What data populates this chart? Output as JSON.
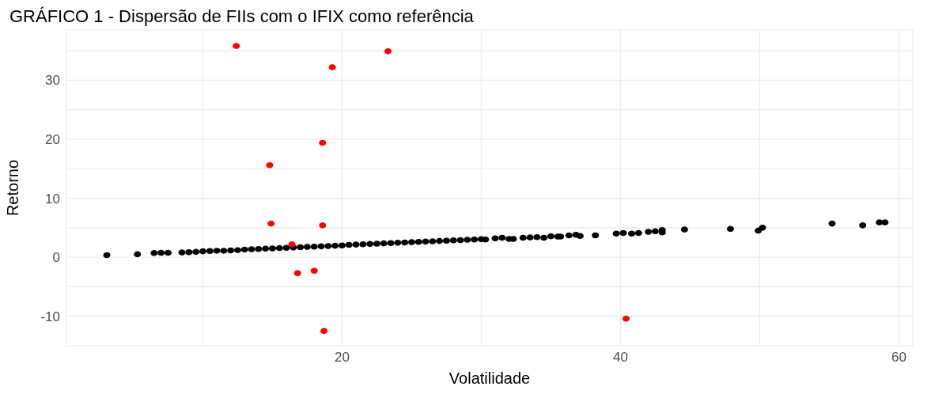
{
  "chart_data": {
    "type": "scatter",
    "title": "GRÁFICO 1 - Dispersão de FIIs com o IFIX como referência",
    "xlabel": "Volatilidade",
    "ylabel": "Retorno",
    "marker": "circle",
    "grid": true,
    "legend": false,
    "xlim": [
      0.2,
      61
    ],
    "ylim": [
      -15,
      38.5
    ],
    "xticks": [
      {
        "value": 10,
        "label": null
      },
      20,
      {
        "value": 30,
        "label": null
      },
      40,
      {
        "value": 50,
        "label": null
      },
      60
    ],
    "yticks": [
      {
        "value": -15,
        "label": null
      },
      -10,
      {
        "value": -5,
        "label": null
      },
      0,
      {
        "value": 5,
        "label": null
      },
      10,
      {
        "value": 15,
        "label": null
      },
      20,
      {
        "value": 25,
        "label": null
      },
      30,
      {
        "value": 35,
        "label": null
      }
    ],
    "series": [
      {
        "color": "#000000",
        "x": [
          3.1,
          5.3,
          6.5,
          7,
          7.5,
          8.5,
          9,
          9.5,
          10,
          10.5,
          11,
          11.5,
          12,
          12.5,
          13,
          13.5,
          14,
          14.5,
          15,
          15.5,
          16,
          16.5,
          17,
          17.5,
          18,
          18.5,
          19,
          19.5,
          20,
          20.5,
          21,
          21.5,
          22,
          22.5,
          23,
          23.5,
          24,
          24.5,
          25,
          25.5,
          26,
          26.5,
          27,
          27.5,
          28,
          28.5,
          29,
          29.5,
          30,
          30.3,
          31,
          31.5,
          32,
          32.3,
          33,
          33.5,
          34,
          34.5,
          35,
          35.5,
          35.7,
          36.3,
          36.8,
          37.1,
          38.2,
          39.7,
          40.2,
          40.8,
          41.3,
          42,
          42.5,
          43,
          43,
          44.6,
          47.9,
          49.9,
          50.2,
          55.2,
          57.4,
          58.6,
          59
        ],
        "values": [
          0.35,
          0.5,
          0.7,
          0.75,
          0.75,
          0.8,
          0.85,
          0.9,
          1.0,
          1.05,
          1.1,
          1.1,
          1.15,
          1.2,
          1.3,
          1.35,
          1.4,
          1.45,
          1.5,
          1.55,
          1.6,
          1.65,
          1.7,
          1.75,
          1.8,
          1.85,
          1.9,
          1.95,
          2.0,
          2.1,
          2.15,
          2.2,
          2.25,
          2.3,
          2.35,
          2.4,
          2.45,
          2.5,
          2.55,
          2.6,
          2.65,
          2.7,
          2.75,
          2.8,
          2.85,
          2.9,
          2.95,
          3.0,
          3.05,
          3.0,
          3.2,
          3.3,
          3.1,
          3.1,
          3.3,
          3.35,
          3.4,
          3.3,
          3.55,
          3.5,
          3.5,
          3.7,
          3.8,
          3.6,
          3.7,
          4.0,
          4.1,
          4.0,
          4.1,
          4.3,
          4.4,
          4.2,
          4.6,
          4.7,
          4.8,
          4.5,
          5.0,
          5.7,
          5.4,
          5.9,
          5.9
        ]
      },
      {
        "color": "#ff0000",
        "x": [
          12.4,
          23.3,
          19.3,
          18.6,
          14.8,
          14.9,
          18.6,
          16.4,
          16.8,
          18.0,
          18.7,
          40.4
        ],
        "values": [
          35.8,
          34.9,
          32.2,
          19.4,
          15.6,
          5.7,
          5.4,
          2.2,
          -2.7,
          -2.3,
          -12.5,
          -10.4
        ]
      }
    ]
  }
}
